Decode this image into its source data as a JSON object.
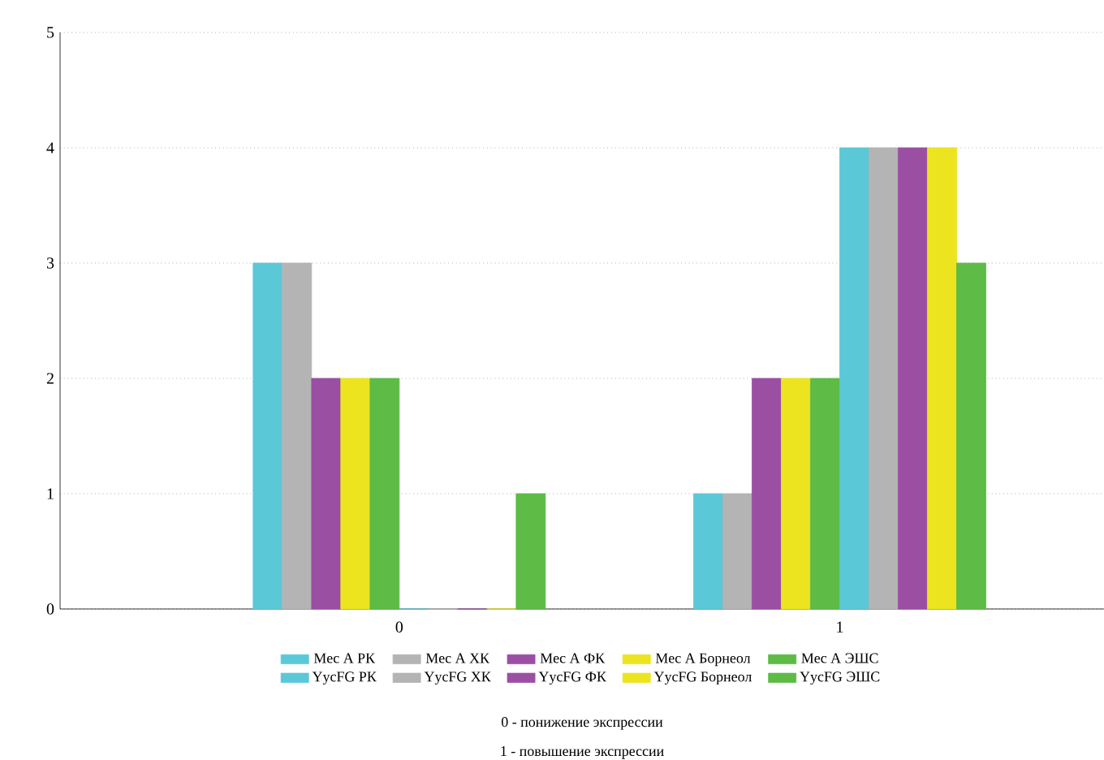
{
  "chart_data": {
    "type": "bar",
    "categories": [
      "0",
      "1"
    ],
    "series": [
      {
        "name": "Mec A РК",
        "color": "#5bc8d8",
        "values": [
          3,
          1
        ]
      },
      {
        "name": "Mec A ХК",
        "color": "#b4b4b4",
        "values": [
          3,
          1
        ]
      },
      {
        "name": "Mec A ФК",
        "color": "#9b4fa3",
        "values": [
          2,
          2
        ]
      },
      {
        "name": "Mec A Борнеол",
        "color": "#ece41f",
        "values": [
          2,
          2
        ]
      },
      {
        "name": "Mec A ЭШС",
        "color": "#5dbb46",
        "values": [
          2,
          2
        ]
      },
      {
        "name": "YycFG РК",
        "color": "#5bc8d8",
        "values": [
          0,
          4
        ]
      },
      {
        "name": "YycFG ХК",
        "color": "#b4b4b4",
        "values": [
          0,
          4
        ]
      },
      {
        "name": "YycFG ФК",
        "color": "#9b4fa3",
        "values": [
          0,
          4
        ]
      },
      {
        "name": "YycFG Борнеол",
        "color": "#ece41f",
        "values": [
          0,
          4
        ]
      },
      {
        "name": "YycFG ЭШС",
        "color": "#5dbb46",
        "values": [
          1,
          3
        ]
      }
    ],
    "ylim": [
      0,
      5
    ],
    "yticks": [
      0,
      1,
      2,
      3,
      4,
      5
    ],
    "grid": "y",
    "legend": "bottom",
    "annotations": [
      "0 - понижение экспрессии",
      "1 - повышение экспрессии"
    ]
  }
}
